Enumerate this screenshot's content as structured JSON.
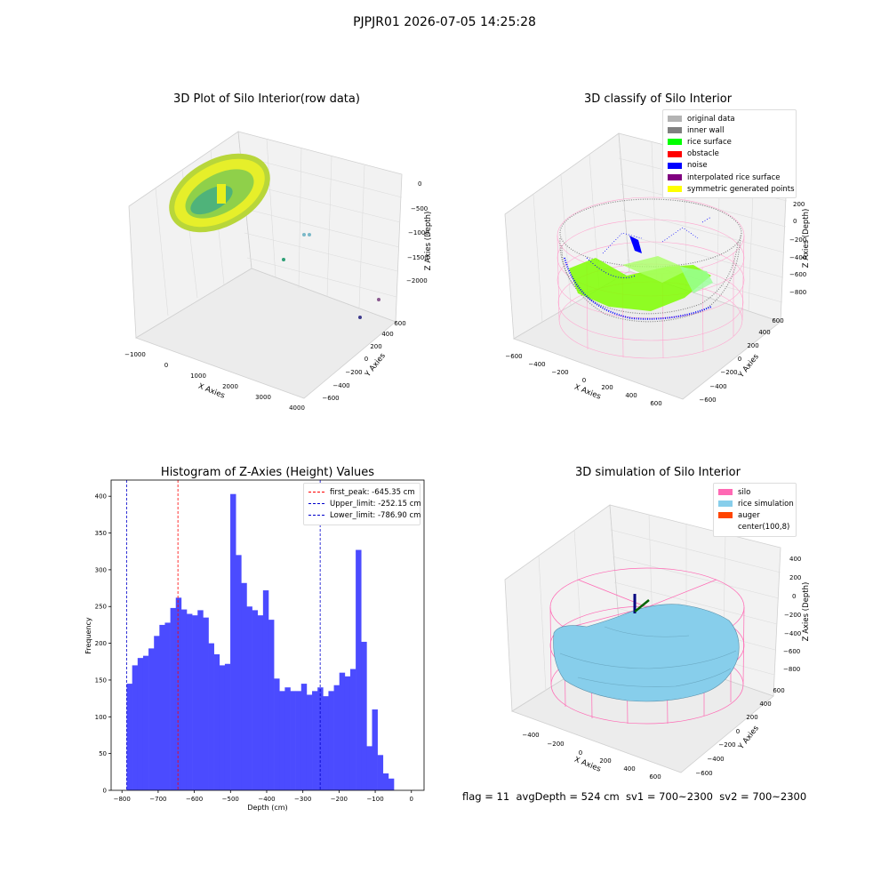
{
  "suptitle": "PJPJR01 2026-07-05 14:25:28",
  "status_line": "flag = 11  avgDepth = 524 cm  sv1 = 700~2300  sv2 = 700~2300",
  "chart_data": [
    {
      "type": "scatter",
      "projection": "3d",
      "title": "3D Plot of Silo Interior(row data)",
      "xlabel": "X Axies",
      "ylabel": "Y Axies",
      "zlabel": "Z Axies (Depth)",
      "xticks": [
        "−1000",
        "0",
        "1000",
        "2000",
        "3000",
        "4000"
      ],
      "yticks": [
        "−600",
        "−400",
        "−200",
        "0",
        "200",
        "400",
        "600"
      ],
      "zticks": [
        "0",
        "−500",
        "−1000",
        "−1500",
        "−2000"
      ],
      "xlim": [
        -1000,
        4000
      ],
      "ylim": [
        -600,
        600
      ],
      "zlim": [
        -2300,
        100
      ],
      "colormap": "viridis (height)",
      "main_cluster": {
        "x_range": [
          -700,
          700
        ],
        "y_range": [
          -700,
          700
        ],
        "z_range": [
          -900,
          0
        ]
      },
      "outliers": [
        {
          "x": 1500,
          "y": 0,
          "z": -1000
        },
        {
          "x": 1400,
          "y": 0,
          "z": -1550
        },
        {
          "x": 2500,
          "y": -400,
          "z": -2100
        },
        {
          "x": 3800,
          "y": -300,
          "z": -2250
        }
      ]
    },
    {
      "type": "scatter",
      "projection": "3d",
      "title": "3D classify of Silo Interior",
      "xlabel": "X Axies",
      "ylabel": "Y Axies",
      "zlabel": "Z Axies (Depth)",
      "xticks": [
        "−600",
        "−400",
        "−200",
        "0",
        "200",
        "400",
        "600"
      ],
      "yticks": [
        "−600",
        "−400",
        "−200",
        "0",
        "200",
        "400",
        "600"
      ],
      "zticks": [
        "200",
        "0",
        "−200",
        "−400",
        "−600",
        "−800"
      ],
      "xlim": [
        -650,
        650
      ],
      "ylim": [
        -650,
        650
      ],
      "zlim": [
        -950,
        300
      ],
      "legend_position": "top-right",
      "series": [
        {
          "name": "original data",
          "color": "#b3b3b3"
        },
        {
          "name": "inner wall",
          "color": "#808080"
        },
        {
          "name": "rice surface",
          "color": "#00ff00"
        },
        {
          "name": "obstacle",
          "color": "#ff0000"
        },
        {
          "name": "noise",
          "color": "#0000ff"
        },
        {
          "name": "interpolated rice surface",
          "color": "#800080"
        },
        {
          "name": "symmetric generated points",
          "color": "#ffff00"
        }
      ],
      "silo_wireframe_color": "#ff99cc"
    },
    {
      "type": "bar",
      "title": "Histogram of Z-Axies (Height) Values",
      "xlabel": "Depth (cm)",
      "ylabel": "Frequency",
      "xlim": [
        -830,
        35
      ],
      "ylim": [
        0,
        422
      ],
      "xticks": [
        -800,
        -700,
        -600,
        -500,
        -400,
        -300,
        -200,
        -100,
        0
      ],
      "yticks": [
        0,
        50,
        100,
        150,
        200,
        250,
        300,
        350,
        400
      ],
      "bar_color": "#4b4bff",
      "bin_start": -786.9,
      "bin_width": 15.07,
      "values": [
        145,
        170,
        180,
        183,
        193,
        210,
        225,
        228,
        248,
        262,
        246,
        240,
        238,
        245,
        235,
        200,
        185,
        170,
        172,
        403,
        320,
        282,
        250,
        245,
        238,
        272,
        232,
        152,
        135,
        140,
        135,
        135,
        145,
        130,
        135,
        140,
        128,
        135,
        143,
        160,
        155,
        165,
        327,
        202,
        60,
        110,
        48,
        23,
        16
      ],
      "vlines": [
        {
          "name": "first_peak: -645.35 cm",
          "x": -645.35,
          "color": "#ff0000"
        },
        {
          "name": "Upper_limit: -252.15 cm",
          "x": -252.15,
          "color": "#0000cc"
        },
        {
          "name": "Lower_limit: -786.90 cm",
          "x": -786.9,
          "color": "#0000cc"
        }
      ],
      "legend_position": "top-right"
    },
    {
      "type": "surface",
      "projection": "3d",
      "title": "3D simulation of Silo Interior",
      "xlabel": "X Axies",
      "ylabel": "Y Axies",
      "zlabel": "Z Axies (Depth)",
      "xticks": [
        "−400",
        "−200",
        "0",
        "200",
        "400",
        "600"
      ],
      "yticks": [
        "−600",
        "−400",
        "−200",
        "0",
        "200",
        "400",
        "600"
      ],
      "zticks": [
        "400",
        "200",
        "0",
        "−200",
        "−400",
        "−600",
        "−800"
      ],
      "legend_position": "top-right",
      "series": [
        {
          "name": "silo",
          "color": "#ff69b4"
        },
        {
          "name": "rice simulation",
          "color": "#87ceeb"
        },
        {
          "name": "auger",
          "color": "#ff4500"
        },
        {
          "name": "center(100,8)",
          "color": "#ffffff"
        }
      ]
    }
  ]
}
